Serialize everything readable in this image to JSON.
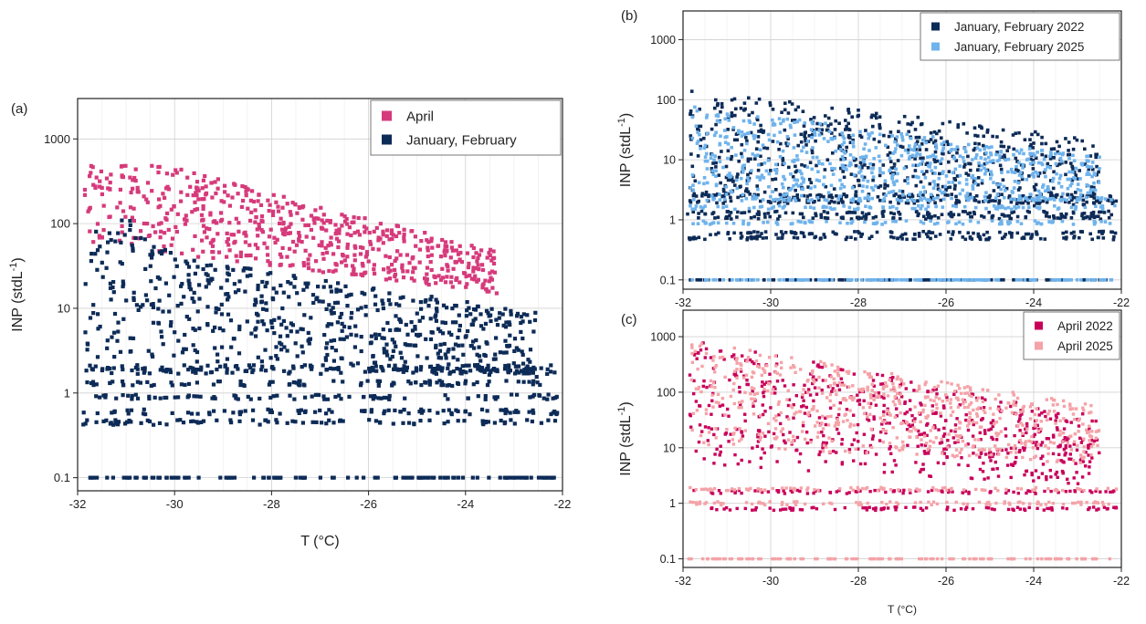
{
  "chart_data": [
    {
      "id": "a",
      "type": "scatter",
      "panel_label": "(a)",
      "xlabel": "T (°C)",
      "ylabel_main": "INP (stdL",
      "ylabel_sup": "-1",
      "ylabel_close": ")",
      "xlim": [
        -32,
        -22
      ],
      "ylim": [
        0.07,
        3000
      ],
      "y_scale": "log",
      "x_ticks": [
        -32,
        -30,
        -28,
        -26,
        -24,
        -22
      ],
      "x_tick_labels": [
        "-32",
        "-30",
        "-28",
        "-26",
        "-24",
        "-22"
      ],
      "y_ticks": [
        0.1,
        1,
        10,
        100,
        1000
      ],
      "y_tick_labels": [
        "0.1",
        "1",
        "10",
        "100",
        "1000"
      ],
      "grid": true,
      "legend_position": "top-right",
      "series": [
        {
          "name": "April",
          "color": "#d63a7b",
          "distribution": {
            "low_start": 60,
            "low_end": 12,
            "high_start": 900,
            "high_end": 30,
            "floor_level": 1.0,
            "sparse_floor": true
          }
        },
        {
          "name": "January, February",
          "color": "#0d2b57",
          "distribution": {
            "low_start": 2.5,
            "low_end": 1.5,
            "high_start": 60,
            "high_end": 8,
            "floor_levels": [
              0.1,
              0.45,
              0.6,
              0.9,
              1.3,
              1.8,
              2.0
            ],
            "bulge_center": -31,
            "bulge_high": 150
          }
        }
      ]
    },
    {
      "id": "b",
      "type": "scatter",
      "panel_label": "(b)",
      "xlabel": "",
      "ylabel_main": "INP (stdL",
      "ylabel_sup": "-1",
      "ylabel_close": ")",
      "xlim": [
        -32,
        -22
      ],
      "ylim": [
        0.07,
        3000
      ],
      "y_scale": "log",
      "x_ticks": [
        -32,
        -30,
        -28,
        -26,
        -24,
        -22
      ],
      "x_tick_labels": [
        "-32",
        "-30",
        "-28",
        "-26",
        "-24",
        "-22"
      ],
      "y_ticks": [
        0.1,
        1,
        10,
        100,
        1000
      ],
      "y_tick_labels": [
        "0.1",
        "1",
        "10",
        "100",
        "1000"
      ],
      "grid": true,
      "legend_position": "top-right",
      "series": [
        {
          "name": "January, February 2022",
          "color": "#0d2b57",
          "distribution": {
            "low_start": 2.5,
            "low_end": 1.5,
            "high_start": 150,
            "high_end": 20,
            "floor_levels": [
              0.1,
              0.5,
              0.6,
              1.1,
              1.3,
              2.0,
              2.5
            ]
          }
        },
        {
          "name": "January, February 2025",
          "color": "#6fb3ec",
          "distribution": {
            "low_start": 2.5,
            "low_end": 2.0,
            "high_start": 80,
            "high_end": 10,
            "floor_levels": [
              0.1,
              0.9,
              1.6,
              2.2
            ]
          }
        }
      ]
    },
    {
      "id": "c",
      "type": "scatter",
      "panel_label": "(c)",
      "xlabel": "T (°C)",
      "ylabel_main": "INP (stdL",
      "ylabel_sup": "-1",
      "ylabel_close": ")",
      "xlim": [
        -32,
        -22
      ],
      "ylim": [
        0.07,
        3000
      ],
      "y_scale": "log",
      "x_ticks": [
        -32,
        -30,
        -28,
        -26,
        -24,
        -22
      ],
      "x_tick_labels": [
        "-32",
        "-30",
        "-28",
        "-26",
        "-24",
        "-22"
      ],
      "y_ticks": [
        0.1,
        1,
        10,
        100,
        1000
      ],
      "y_tick_labels": [
        "0.1",
        "1",
        "10",
        "100",
        "1000"
      ],
      "grid": true,
      "legend_position": "top-right",
      "series": [
        {
          "name": "April 2022",
          "color": "#c8005a",
          "distribution": {
            "low_start": 5,
            "low_end": 2,
            "high_start": 1000,
            "high_end": 30,
            "floor_levels": [
              0.8,
              1.6
            ]
          }
        },
        {
          "name": "April 2025",
          "color": "#f4a3a8",
          "distribution": {
            "low_start": 10,
            "low_end": 5,
            "high_start": 900,
            "high_end": 50,
            "floor_levels": [
              0.1,
              1.0,
              1.8
            ]
          }
        }
      ]
    }
  ]
}
